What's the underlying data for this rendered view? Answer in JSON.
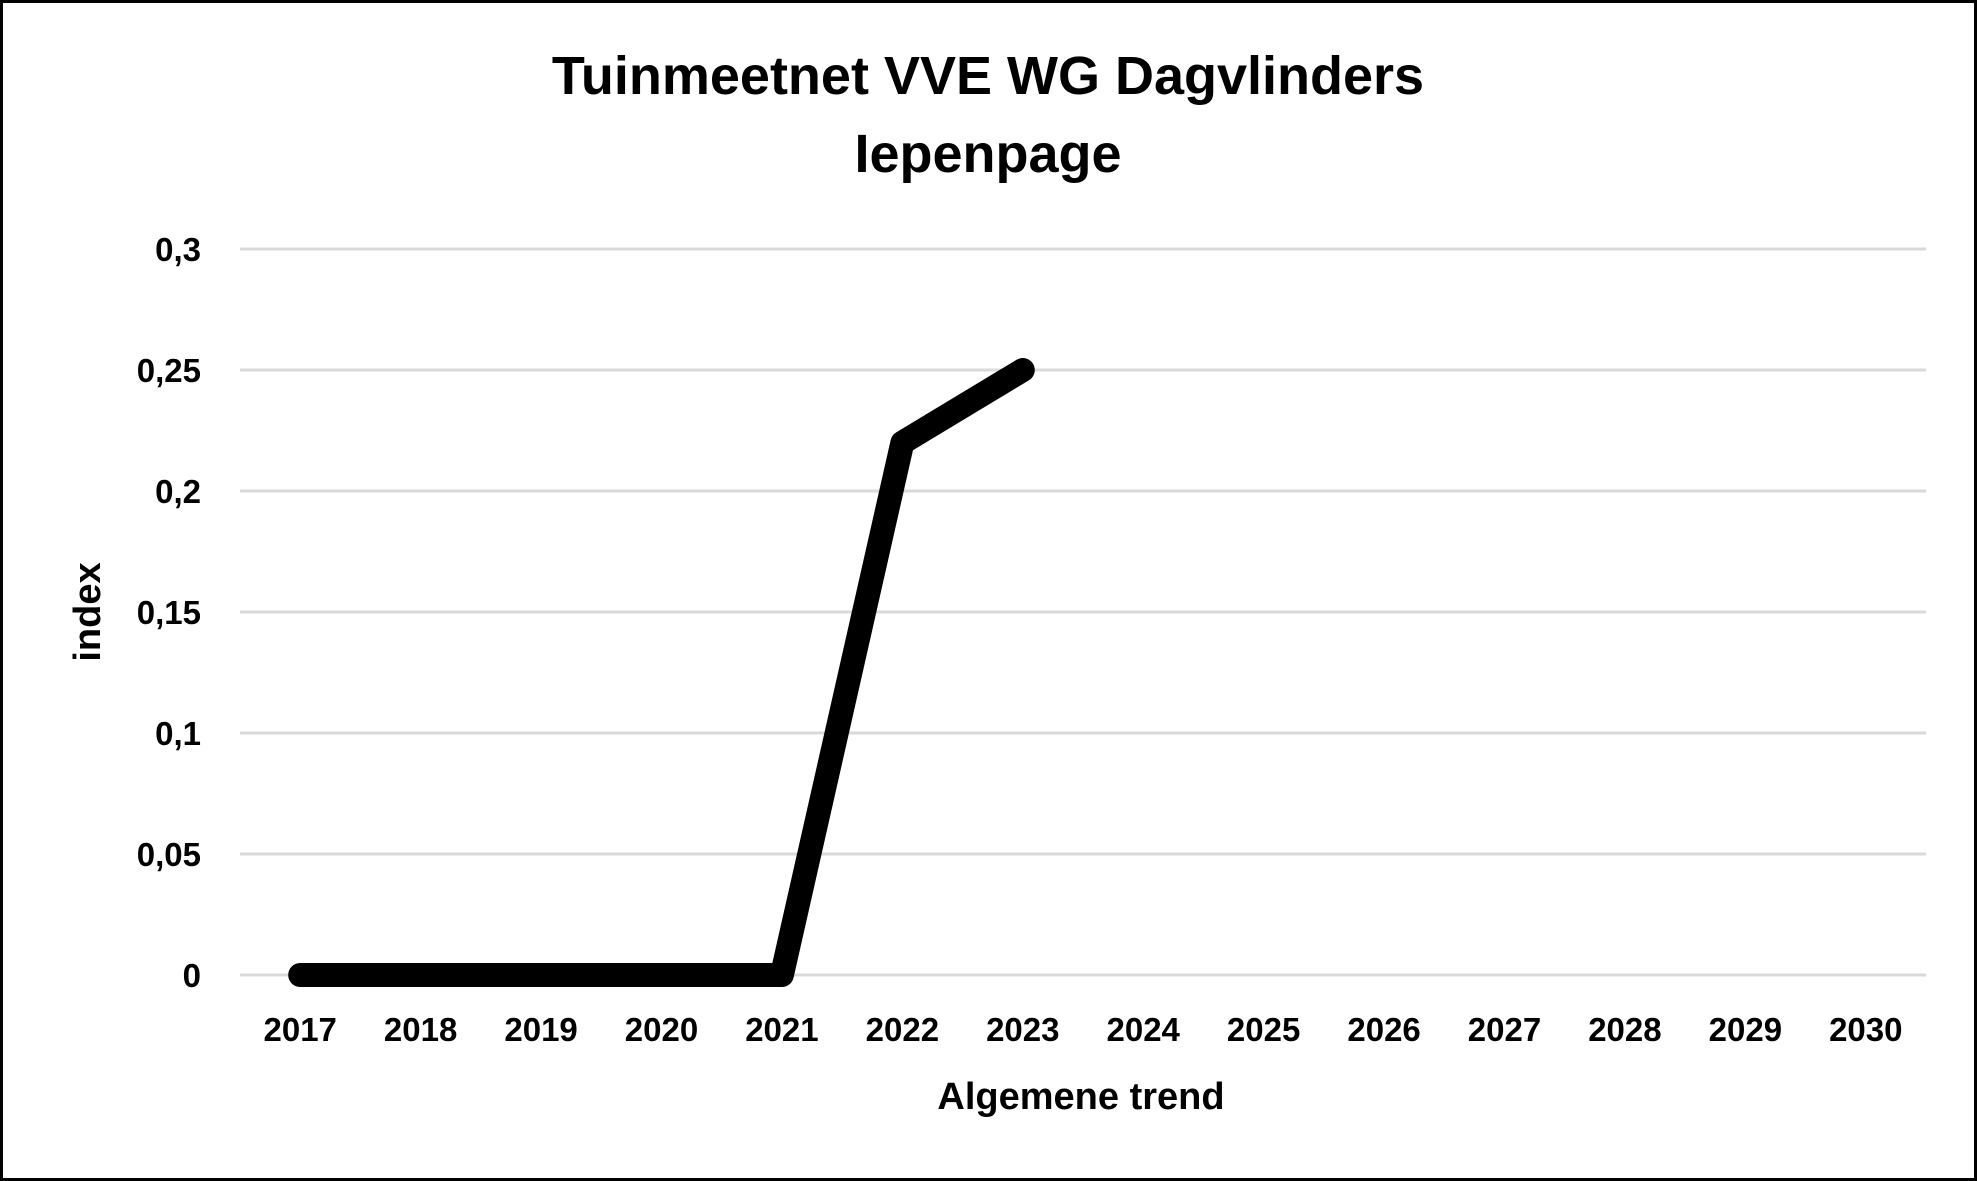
{
  "chart_data": {
    "type": "line",
    "title_lines": [
      "Tuinmeetnet VVE WG Dagvlinders",
      "Iepenpage"
    ],
    "xlabel": "Algemene trend",
    "ylabel": "index",
    "categories": [
      "2017",
      "2018",
      "2019",
      "2020",
      "2021",
      "2022",
      "2023",
      "2024",
      "2025",
      "2026",
      "2027",
      "2028",
      "2029",
      "2030"
    ],
    "ylim": [
      0,
      0.3
    ],
    "yticks": [
      0,
      0.05,
      0.1,
      0.15,
      0.2,
      0.25,
      0.3
    ],
    "ytick_labels": [
      "0",
      "0,05",
      "0,1",
      "0,15",
      "0,2",
      "0,25",
      "0,3"
    ],
    "grid": true,
    "legend": "none",
    "series": [
      {
        "color": "#000000",
        "values": [
          0,
          0,
          0,
          0,
          0,
          0.22,
          0.25,
          null,
          null,
          null,
          null,
          null,
          null,
          null
        ]
      }
    ]
  }
}
